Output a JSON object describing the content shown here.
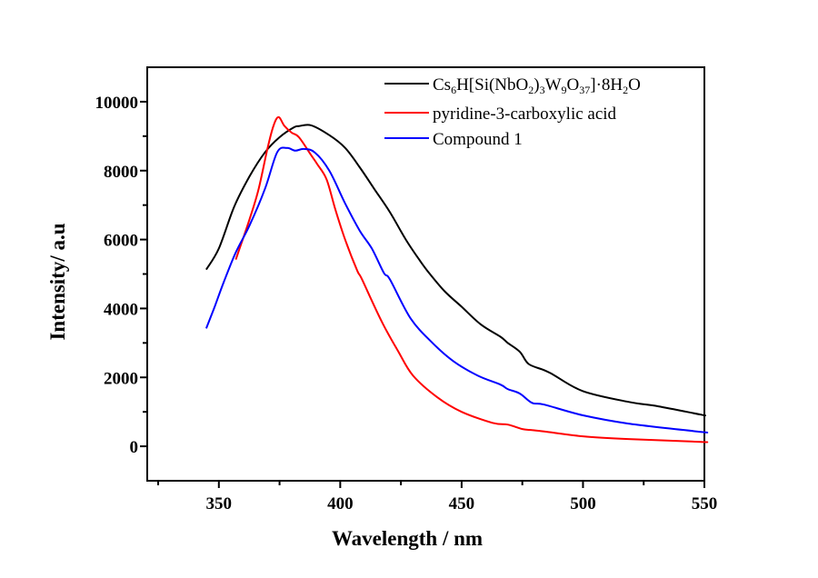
{
  "chart_data": {
    "type": "line",
    "title": "",
    "xlabel": "Wavelength / nm",
    "ylabel": "Intensity/ a.u",
    "xlim": [
      320.5,
      550
    ],
    "ylim": [
      -1000,
      11000
    ],
    "x_ticks": [
      350,
      400,
      450,
      500,
      550
    ],
    "x_tick_labels": [
      "350",
      "400",
      "450",
      "500",
      "550"
    ],
    "x_minor_ticks": [
      325,
      375,
      425,
      475,
      525
    ],
    "y_ticks": [
      0,
      2000,
      4000,
      6000,
      8000,
      10000
    ],
    "y_tick_labels": [
      "0",
      "2000",
      "4000",
      "6000",
      "8000",
      "10000"
    ],
    "y_minor_ticks": [
      1000,
      3000,
      5000,
      7000,
      9000
    ],
    "grid": false,
    "legend_position": "top-right",
    "series": [
      {
        "name": "Cs6H[Si(NbO2)3W9O37]·8H2O",
        "legend_parts": [
          {
            "t": "Cs"
          },
          {
            "t": "6",
            "sub": true
          },
          {
            "t": "H[Si(NbO"
          },
          {
            "t": "2",
            "sub": true
          },
          {
            "t": ")"
          },
          {
            "t": "3",
            "sub": true
          },
          {
            "t": "W"
          },
          {
            "t": "9",
            "sub": true
          },
          {
            "t": "O"
          },
          {
            "t": "37",
            "sub": true
          },
          {
            "t": "]·8H"
          },
          {
            "t": "2",
            "sub": true
          },
          {
            "t": "O"
          }
        ],
        "color": "#000000",
        "x": [
          344.8,
          350,
          356.3,
          362.7,
          369,
          375,
          381,
          383,
          388,
          395.5,
          402,
          408,
          414,
          420.5,
          427,
          433,
          436.6,
          443,
          450,
          458,
          466,
          469,
          474,
          477.6,
          484,
          487.7,
          500,
          518.7,
          531,
          548.5,
          550
        ],
        "y": [
          5130,
          5740,
          6950,
          7840,
          8530,
          8970,
          9260,
          9290,
          9315,
          9030,
          8660,
          8100,
          7470,
          6790,
          6000,
          5370,
          5030,
          4500,
          4050,
          3530,
          3180,
          3000,
          2740,
          2390,
          2210,
          2080,
          1600,
          1290,
          1160,
          920,
          900
        ]
      },
      {
        "name": "pyridine-3-carboxylic acid",
        "legend_parts": [
          {
            "t": "pyridine-3-carboxylic acid"
          }
        ],
        "color": "#ff0000",
        "x": [
          357,
          358,
          362.7,
          366.4,
          370,
          372.5,
          374.6,
          377,
          380,
          383,
          388,
          390.6,
          394.4,
          398,
          402,
          407,
          409,
          417,
          424,
          430,
          440,
          450,
          462.7,
          469,
          475,
          479,
          484,
          500,
          518.7,
          548.5,
          550
        ],
        "y": [
          5420,
          5630,
          6600,
          7470,
          8630,
          9300,
          9553,
          9300,
          9100,
          8970,
          8450,
          8180,
          7740,
          6870,
          6000,
          5100,
          4840,
          3630,
          2740,
          2050,
          1420,
          1000,
          680,
          630,
          500,
          470,
          430,
          290,
          210,
          130,
          120
        ]
      },
      {
        "name": "Compound 1",
        "legend_parts": [
          {
            "t": "Compound 1"
          }
        ],
        "color": "#0000ff",
        "x": [
          344.8,
          348,
          352,
          357,
          362.7,
          369,
          374,
          378,
          381.5,
          385,
          389.5,
          395.5,
          402,
          408,
          413,
          418,
          420.5,
          429,
          438,
          446.6,
          456.7,
          466,
          469,
          474,
          479,
          484,
          500,
          518.7,
          548.5,
          550
        ],
        "y": [
          3420,
          4000,
          4760,
          5630,
          6420,
          7470,
          8530,
          8658,
          8580,
          8630,
          8530,
          8000,
          7050,
          6260,
          5740,
          5030,
          4840,
          3710,
          3000,
          2470,
          2050,
          1790,
          1660,
          1530,
          1260,
          1210,
          900,
          660,
          420,
          410
        ]
      }
    ]
  }
}
